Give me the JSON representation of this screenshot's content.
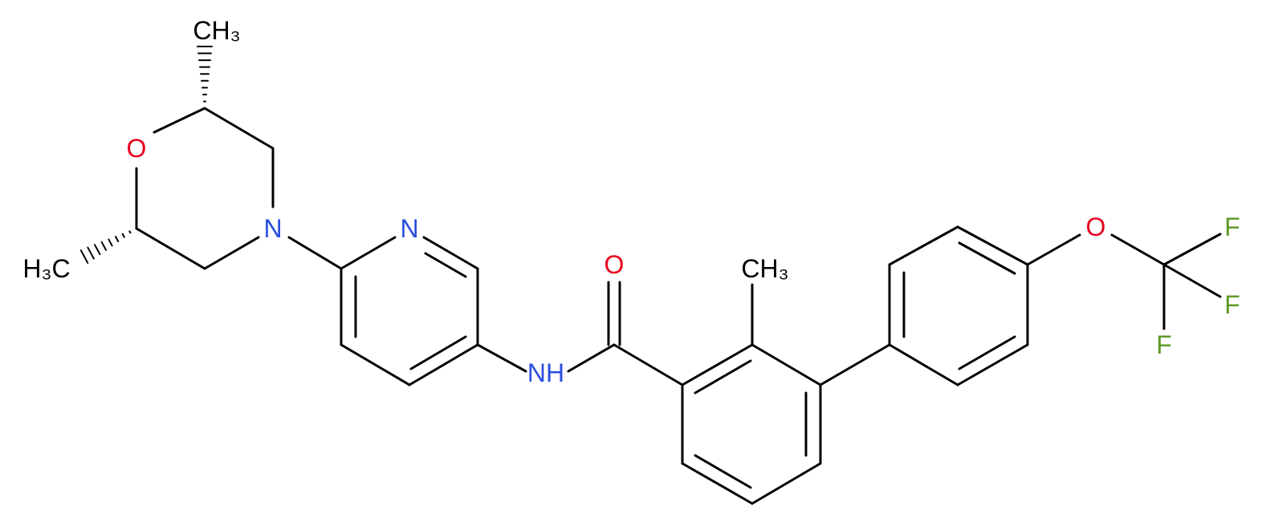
{
  "atoms": [
    {
      "label": "CH₃"
    },
    {
      "label": "O"
    },
    {
      "label": "N"
    },
    {
      "label": "H₃C"
    },
    {
      "label": "N"
    },
    {
      "label": "NH"
    },
    {
      "label": "O"
    },
    {
      "label": "CH₃"
    },
    {
      "label": "O"
    },
    {
      "label": "F"
    },
    {
      "label": "F"
    },
    {
      "label": "F"
    }
  ]
}
